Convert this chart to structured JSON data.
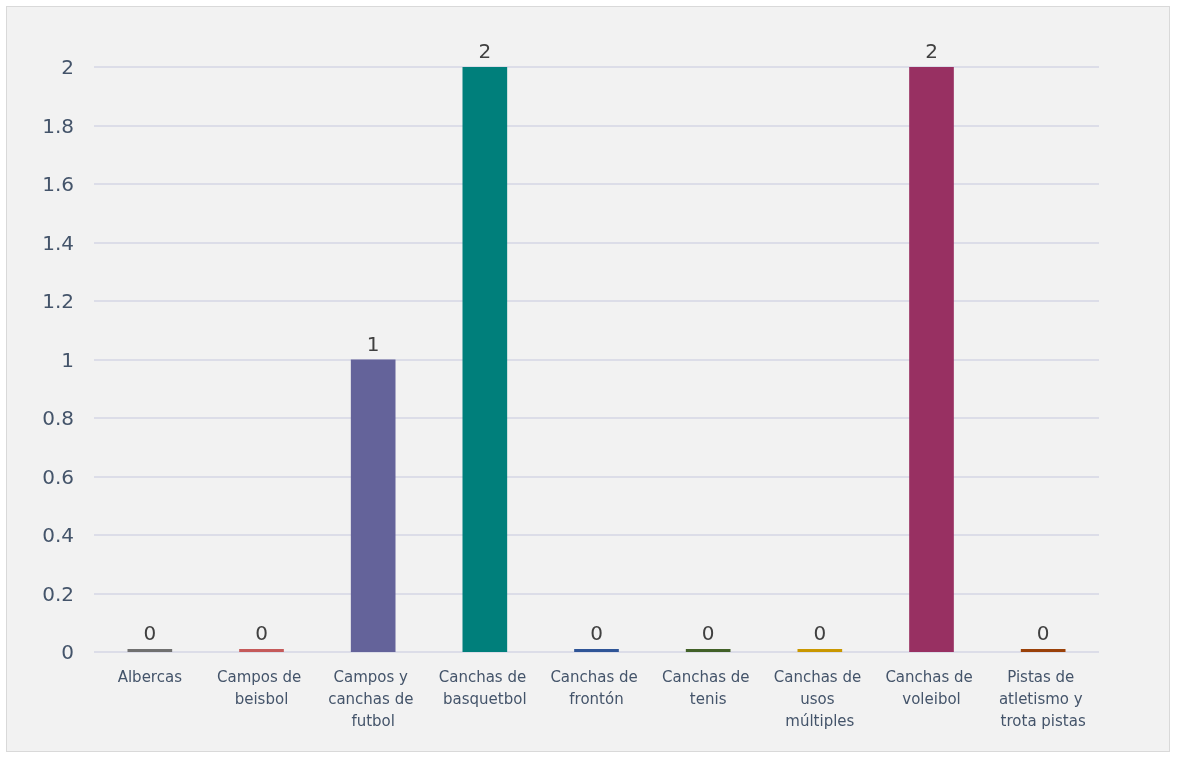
{
  "chart_data": {
    "type": "bar",
    "categories": [
      "Albercas",
      "Campos de beisbol",
      "Campos y canchas de futbol",
      "Canchas de basquetbol",
      "Canchas de frontón",
      "Canchas de tenis",
      "Canchas de usos múltiples",
      "Canchas de voleibol",
      "Pistas de atletismo y trota pistas"
    ],
    "values": [
      0,
      0,
      1,
      2,
      0,
      0,
      0,
      2,
      0
    ],
    "colors": [
      "#707070",
      "#c55a5a",
      "#64639a",
      "#007f7b",
      "#2f5597",
      "#426128",
      "#c99700",
      "#983062",
      "#9a4109"
    ],
    "ylim": [
      0,
      2
    ],
    "yticks": [
      0,
      0.2,
      0.4,
      0.6,
      0.8,
      1,
      1.2,
      1.4,
      1.6,
      1.8,
      2
    ],
    "grid": "y",
    "data_labels": true
  }
}
